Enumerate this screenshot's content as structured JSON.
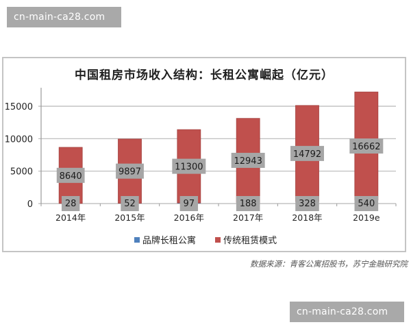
{
  "watermarks": {
    "top": "cn-main-ca28.com",
    "bottom": "cn-main-ca28.com"
  },
  "chart": {
    "title": "中国租房市场收入结构：长租公寓崛起（亿元）",
    "legend": [
      {
        "label": "品牌长租公寓",
        "color": "#4f81bd"
      },
      {
        "label": "传统租赁模式",
        "color": "#c0504d"
      }
    ],
    "source": "数据来源：青客公寓招股书，苏宁金融研究院",
    "colors": {
      "bar": "#c0504d",
      "bar_border": "#a34240",
      "label_bg": "#a6a6a6",
      "grid": "#b8b8b8",
      "axis": "#999999"
    }
  },
  "chart_data": {
    "type": "bar",
    "stacked": true,
    "title": "中国租房市场收入结构：长租公寓崛起（亿元）",
    "xlabel": "",
    "ylabel": "",
    "categories": [
      "2014年",
      "2015年",
      "2016年",
      "2017年",
      "2018年",
      "2019e"
    ],
    "series": [
      {
        "name": "品牌长租公寓",
        "color": "#4f81bd",
        "values": [
          28,
          52,
          97,
          188,
          328,
          540
        ]
      },
      {
        "name": "传统租赁模式",
        "color": "#c0504d",
        "values": [
          8640,
          9897,
          11300,
          12943,
          14792,
          16662
        ]
      }
    ],
    "yticks": [
      0,
      5000,
      10000,
      15000
    ],
    "ylim": [
      0,
      17500
    ],
    "grid": true,
    "legend_position": "bottom",
    "source": "数据来源：青客公寓招股书，苏宁金融研究院"
  }
}
